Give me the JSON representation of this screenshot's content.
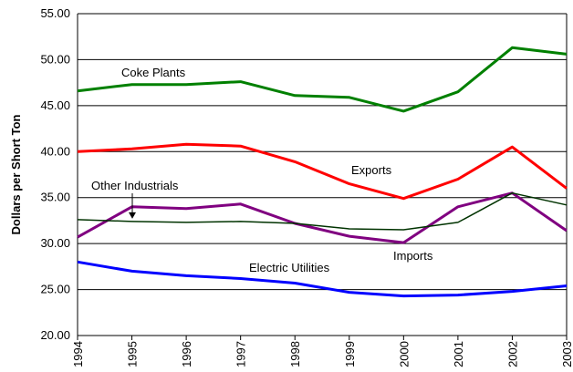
{
  "chart_data": {
    "type": "line",
    "title": "",
    "xlabel": "",
    "ylabel": "Dollars per Short Ton",
    "x": [
      "1994",
      "1995",
      "1996",
      "1997",
      "1998",
      "1999",
      "2000",
      "2001",
      "2002",
      "2003"
    ],
    "ylim": [
      20,
      55
    ],
    "yticks": [
      "20.00",
      "25.00",
      "30.00",
      "35.00",
      "40.00",
      "45.00",
      "50.00",
      "55.00"
    ],
    "grid": "horizontal",
    "series": [
      {
        "name": "Coke Plants",
        "color": "#008000",
        "values": [
          46.6,
          47.3,
          47.3,
          47.6,
          46.1,
          45.9,
          44.4,
          46.5,
          51.3,
          50.6
        ]
      },
      {
        "name": "Exports",
        "color": "#ff0000",
        "values": [
          40.0,
          40.3,
          40.8,
          40.6,
          38.9,
          36.5,
          34.9,
          37.0,
          40.5,
          36.0
        ]
      },
      {
        "name": "Imports",
        "color": "#800080",
        "values": [
          30.7,
          34.0,
          33.8,
          34.3,
          32.2,
          30.8,
          30.1,
          34.0,
          35.5,
          31.4
        ]
      },
      {
        "name": "Other Industrials",
        "color": "#003300",
        "values": [
          32.6,
          32.4,
          32.3,
          32.4,
          32.2,
          31.6,
          31.5,
          32.3,
          35.5,
          34.2
        ]
      },
      {
        "name": "Electric Utilities",
        "color": "#0000ff",
        "values": [
          28.0,
          27.0,
          26.5,
          26.2,
          25.7,
          24.7,
          24.3,
          24.4,
          24.8,
          25.4
        ]
      }
    ]
  }
}
